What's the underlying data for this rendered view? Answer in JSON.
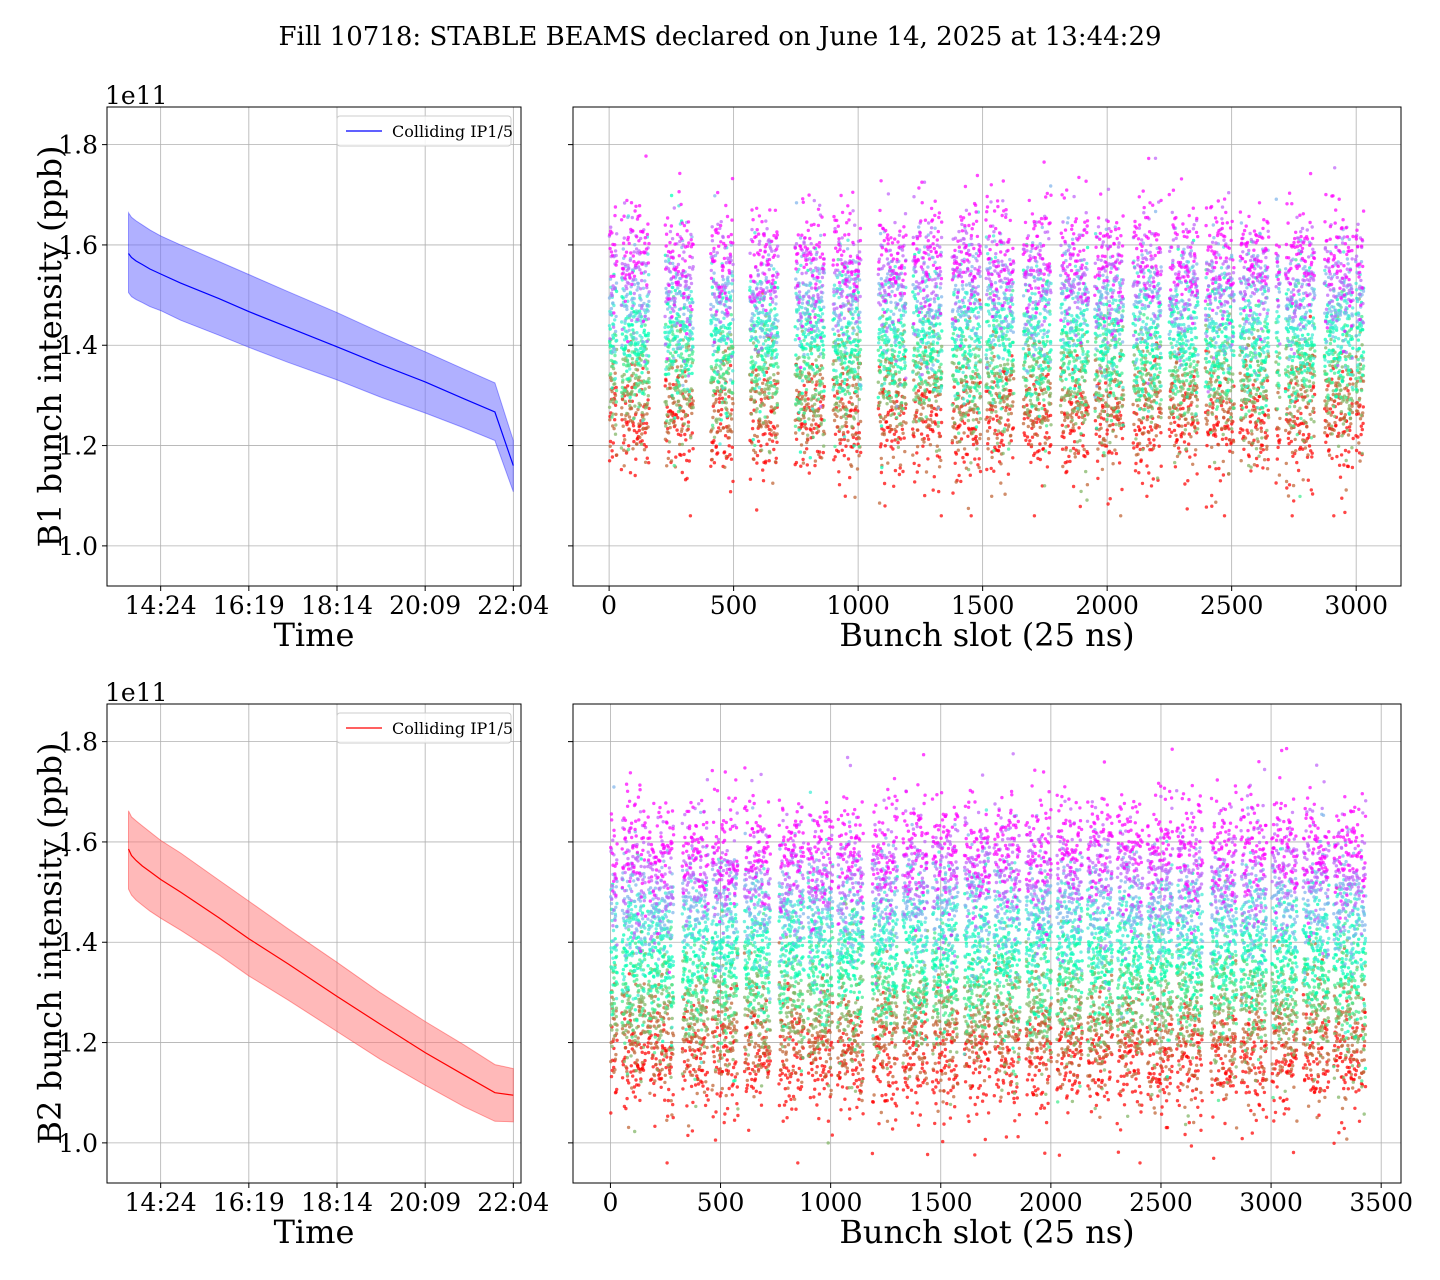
{
  "figure": {
    "title": "Fill 10718: STABLE BEAMS declared on June 14, 2025 at 13:44:29"
  },
  "chart_data": [
    {
      "id": "b1_time",
      "type": "area",
      "xlabel": "Time",
      "ylabel": "B1 bunch intensity (ppb)",
      "y_exponent_label": "1e11",
      "x_ticks": [
        "14:24",
        "16:19",
        "18:14",
        "20:09",
        "22:04"
      ],
      "x_tick_minutes": [
        864,
        979,
        1094,
        1209,
        1324
      ],
      "xlim_minutes": [
        794,
        1334
      ],
      "y_ticks": [
        "1.0",
        "1.2",
        "1.4",
        "1.6",
        "1.8"
      ],
      "ylim": [
        0.92,
        1.875
      ],
      "grid": true,
      "legend": {
        "entries": [
          "Colliding IP1/5"
        ],
        "placement": "upper right"
      },
      "color": "#0000ff",
      "fill_color": "#7070ff",
      "series": [
        {
          "name": "Colliding IP1/5",
          "x_minutes": [
            822,
            826,
            832,
            840,
            850,
            864,
            890,
            940,
            979,
            1030,
            1094,
            1150,
            1209,
            1260,
            1300,
            1324
          ],
          "mean": [
            1.583,
            1.575,
            1.568,
            1.561,
            1.552,
            1.542,
            1.524,
            1.493,
            1.467,
            1.436,
            1.397,
            1.362,
            1.327,
            1.293,
            1.267,
            1.16
          ],
          "upper": [
            1.664,
            1.655,
            1.648,
            1.64,
            1.63,
            1.618,
            1.6,
            1.567,
            1.541,
            1.507,
            1.465,
            1.426,
            1.387,
            1.352,
            1.325,
            1.21
          ],
          "lower": [
            1.505,
            1.497,
            1.491,
            1.485,
            1.477,
            1.469,
            1.45,
            1.42,
            1.396,
            1.366,
            1.331,
            1.297,
            1.265,
            1.235,
            1.21,
            1.108
          ]
        }
      ]
    },
    {
      "id": "b1_slot",
      "type": "scatter",
      "xlabel": "Bunch slot (25 ns)",
      "x_ticks": [
        "0",
        "500",
        "1000",
        "1500",
        "2000",
        "2500",
        "3000"
      ],
      "x_tick_values": [
        0,
        500,
        1000,
        1500,
        2000,
        2500,
        3000
      ],
      "xlim": [
        -145,
        3180
      ],
      "ylim": [
        0.92,
        1.875
      ],
      "grid": true,
      "colormap": "rainbow",
      "color_encodes": "time (red = early, violet = late)",
      "intensity_start": {
        "center": 1.24,
        "spread": 0.055,
        "min": 1.06,
        "max": 1.5
      },
      "intensity_end": {
        "center": 1.58,
        "spread": 0.055,
        "min": 1.3,
        "max": 1.83
      },
      "filled_trains": [
        [
          1,
          30
        ],
        [
          49,
          159
        ],
        [
          224,
          337
        ],
        [
          408,
          497
        ],
        [
          565,
          677
        ],
        [
          747,
          863
        ],
        [
          899,
          1009
        ],
        [
          1081,
          1191
        ],
        [
          1219,
          1335
        ],
        [
          1377,
          1491
        ],
        [
          1513,
          1623
        ],
        [
          1663,
          1774
        ],
        [
          1813,
          1923
        ],
        [
          1950,
          2064
        ],
        [
          2104,
          2217
        ],
        [
          2249,
          2363
        ],
        [
          2394,
          2508
        ],
        [
          2533,
          2647
        ],
        [
          2678,
          2692
        ],
        [
          2716,
          2832
        ],
        [
          2872,
          2987
        ],
        [
          2998,
          3029
        ]
      ]
    },
    {
      "id": "b2_time",
      "type": "area",
      "xlabel": "Time",
      "ylabel": "B2 bunch intensity (ppb)",
      "y_exponent_label": "1e11",
      "x_ticks": [
        "14:24",
        "16:19",
        "18:14",
        "20:09",
        "22:04"
      ],
      "x_tick_minutes": [
        864,
        979,
        1094,
        1209,
        1324
      ],
      "xlim_minutes": [
        794,
        1334
      ],
      "y_ticks": [
        "1.0",
        "1.2",
        "1.4",
        "1.6",
        "1.8"
      ],
      "ylim": [
        0.92,
        1.875
      ],
      "grid": true,
      "legend": {
        "entries": [
          "Colliding IP1/5"
        ],
        "placement": "upper right"
      },
      "color": "#ff0000",
      "fill_color": "#ff8080",
      "series": [
        {
          "name": "Colliding IP1/5",
          "x_minutes": [
            822,
            826,
            832,
            840,
            850,
            864,
            890,
            940,
            979,
            1030,
            1094,
            1150,
            1209,
            1260,
            1300,
            1324
          ],
          "mean": [
            1.586,
            1.573,
            1.563,
            1.552,
            1.541,
            1.525,
            1.5,
            1.449,
            1.407,
            1.357,
            1.292,
            1.237,
            1.18,
            1.135,
            1.1,
            1.095
          ],
          "upper": [
            1.662,
            1.65,
            1.642,
            1.632,
            1.62,
            1.603,
            1.578,
            1.524,
            1.482,
            1.427,
            1.36,
            1.3,
            1.242,
            1.195,
            1.156,
            1.148
          ],
          "lower": [
            1.506,
            1.494,
            1.484,
            1.474,
            1.462,
            1.448,
            1.424,
            1.375,
            1.333,
            1.285,
            1.222,
            1.167,
            1.115,
            1.072,
            1.043,
            1.042
          ]
        }
      ]
    },
    {
      "id": "b2_slot",
      "type": "scatter",
      "xlabel": "Bunch slot (25 ns)",
      "x_ticks": [
        "0",
        "500",
        "1000",
        "1500",
        "2000",
        "2500",
        "3000",
        "3500"
      ],
      "x_tick_values": [
        0,
        500,
        1000,
        1500,
        2000,
        2500,
        3000,
        3500
      ],
      "xlim": [
        -170,
        3590
      ],
      "ylim": [
        0.92,
        1.875
      ],
      "grid": true,
      "colormap": "rainbow",
      "color_encodes": "time (red = early, violet = late)",
      "intensity_start": {
        "center": 1.16,
        "spread": 0.055,
        "min": 0.96,
        "max": 1.4
      },
      "intensity_end": {
        "center": 1.59,
        "spread": 0.055,
        "min": 1.3,
        "max": 1.83
      },
      "filled_trains": [
        [
          1,
          30
        ],
        [
          52,
          159
        ],
        [
          169,
          285
        ],
        [
          326,
          442
        ],
        [
          461,
          578
        ],
        [
          608,
          724
        ],
        [
          765,
          878
        ],
        [
          896,
          1009
        ],
        [
          1031,
          1147
        ],
        [
          1188,
          1302
        ],
        [
          1327,
          1440
        ],
        [
          1462,
          1577
        ],
        [
          1607,
          1722
        ],
        [
          1742,
          1858
        ],
        [
          1887,
          2002
        ],
        [
          2027,
          2141
        ],
        [
          2166,
          2278
        ],
        [
          2301,
          2415
        ],
        [
          2437,
          2551
        ],
        [
          2571,
          2687
        ],
        [
          2726,
          2842
        ],
        [
          2862,
          2978
        ],
        [
          3003,
          3118
        ],
        [
          3145,
          3261
        ],
        [
          3284,
          3400
        ],
        [
          3408,
          3428
        ]
      ]
    }
  ]
}
